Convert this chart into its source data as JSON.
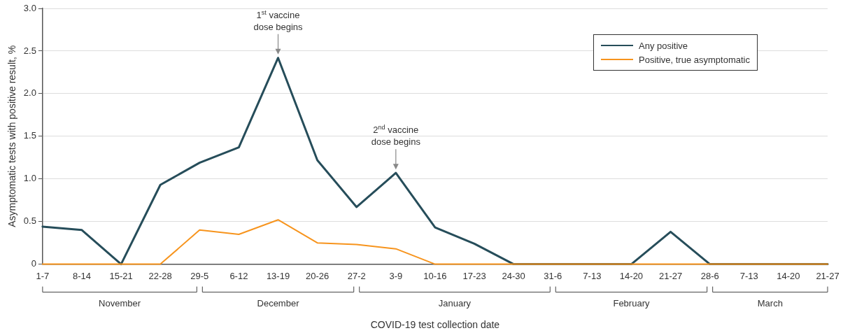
{
  "chart_data": {
    "type": "line",
    "categories": [
      "1-7",
      "8-14",
      "15-21",
      "22-28",
      "29-5",
      "6-12",
      "13-19",
      "20-26",
      "27-2",
      "3-9",
      "10-16",
      "17-23",
      "24-30",
      "31-6",
      "7-13",
      "14-20",
      "21-27",
      "28-6",
      "7-13",
      "14-20",
      "21-27"
    ],
    "series": [
      {
        "name": "Any positive",
        "color": "#264d5a",
        "values": [
          0.44,
          0.4,
          0,
          0.93,
          1.19,
          1.37,
          2.42,
          1.22,
          0.67,
          1.07,
          0.43,
          0.24,
          0,
          0,
          0,
          0,
          0.38,
          0,
          0,
          0,
          0
        ]
      },
      {
        "name": "Positive, true asymptomatic",
        "color": "#f7941d",
        "values": [
          0,
          0,
          0,
          0,
          0.4,
          0.35,
          0.52,
          0.25,
          0.23,
          0.18,
          0,
          0,
          0,
          0,
          0,
          0,
          0,
          0,
          0,
          0,
          0
        ]
      }
    ],
    "xlabel": "COVID-19 test collection date",
    "ylabel": "Asymptomatic tests with positive result, %",
    "ylim": [
      0,
      3.0
    ],
    "yticks": [
      0,
      {
        "value": 0.5,
        "label": "0.5"
      },
      {
        "value": 1,
        "label": "1.0"
      },
      {
        "value": 1.5,
        "label": "1.5"
      },
      {
        "value": 2,
        "label": "2.0"
      },
      {
        "value": 2.5,
        "label": "2.5"
      },
      {
        "value": 3,
        "label": "3.0"
      }
    ],
    "annotations": [
      {
        "text": "1$^{st}$ vaccine dose begins",
        "x": "13-19",
        "y": 2.42
      },
      {
        "text": "2$^{nd}$ vaccine dose begins",
        "x": "3-9",
        "y": 1.07
      },
      "November",
      "December",
      "January",
      "February",
      "March"
    ],
    "grid": "y",
    "legend": "top right",
    "marker": "none",
    "line_style": "solid"
  }
}
